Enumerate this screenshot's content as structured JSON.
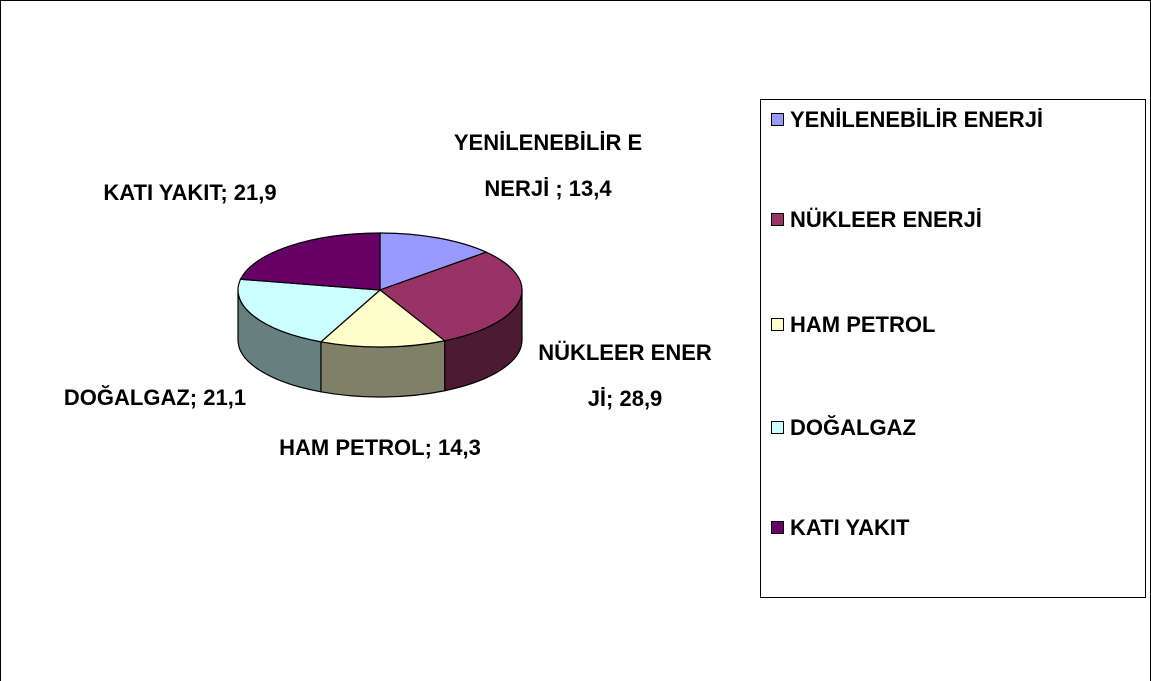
{
  "chart_data": {
    "type": "pie3d",
    "categories": [
      "YENİLENEBİLİR ENERJİ",
      "NÜKLEER ENERJİ",
      "HAM PETROL",
      "DOĞALGAZ",
      "KATI YAKIT"
    ],
    "values": [
      13.4,
      28.9,
      14.3,
      21.1,
      21.9
    ],
    "value_labels": [
      "YENİLENEBİLİR ENERJİ ; 13,4",
      "NÜKLEER ENERJİ; 28,9",
      "HAM PETROL; 14,3",
      "DOĞALGAZ; 21,1",
      "KATI YAKIT; 21,9"
    ],
    "colors": [
      "#9999ff",
      "#993366",
      "#ffffcc",
      "#ccffff",
      "#660066"
    ],
    "legend": "right"
  }
}
